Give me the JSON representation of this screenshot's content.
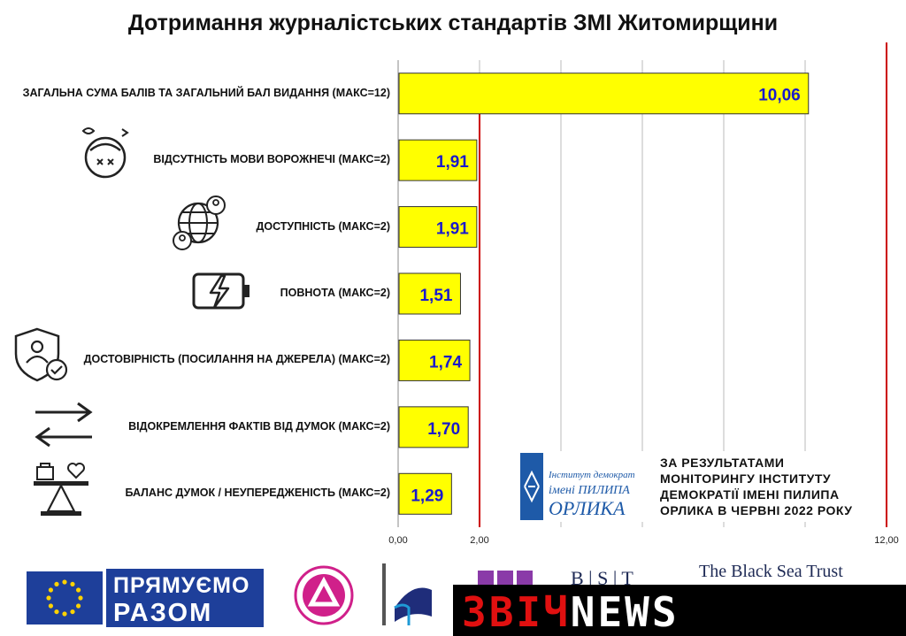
{
  "title": "Дотримання журналістських стандартів ЗМІ Житомирщини",
  "chart_data": {
    "type": "bar",
    "orientation": "horizontal",
    "title": "Дотримання журналістських стандартів ЗМІ Житомирщини",
    "categories": [
      "ЗАГАЛЬНА СУМА БАЛІВ ТА ЗАГАЛЬНИЙ БАЛ ВИДАННЯ (МАКС=12)",
      "ВІДСУТНІСТЬ МОВИ ВОРОЖНЕЧІ (МАКС=2)",
      "ДОСТУПНІСТЬ (МАКС=2)",
      "ПОВНОТА (МАКС=2)",
      "ДОСТОВІРНІСТЬ (ПОСИЛАННЯ НА ДЖЕРЕЛА) (МАКС=2)",
      "ВІДОКРЕМЛЕННЯ ФАКТІВ ВІД ДУМОК (МАКС=2)",
      "БАЛАНС ДУМОК / НЕУПЕРЕДЖЕНІСТЬ (МАКС=2)"
    ],
    "values": [
      10.06,
      1.91,
      1.91,
      1.51,
      1.74,
      1.7,
      1.29
    ],
    "value_labels": [
      "10,06",
      "1,91",
      "1,91",
      "1,51",
      "1,74",
      "1,70",
      "1,29"
    ],
    "xlim": [
      0,
      12
    ],
    "x_tick_labels": [
      "0,00",
      "2,00",
      "12,00"
    ],
    "x_ticks": [
      0,
      2,
      12
    ],
    "gridlines": [
      0,
      2,
      4,
      6,
      8,
      10,
      12
    ],
    "reference_lines": [
      2,
      12
    ],
    "bar_color": "#ffff00",
    "bar_border": "#333333",
    "label_color": "#1a1acc",
    "reference_line_color": "#cc0000",
    "grid": true
  },
  "source": {
    "text_lines": [
      "ЗА РЕЗУЛЬТАТАМИ",
      "МОНІТОРИНГУ ІНСТИТУТУ",
      "ДЕМОКРАТІЇ ІМЕНІ ПИЛИПА",
      "ОРЛИКА В ЧЕРВНІ 2022 РОКУ"
    ],
    "logo_lines": [
      "Інститут демократії",
      "імені ПИЛИПА",
      "ОРЛИКА"
    ]
  },
  "footer": {
    "pryamuemo_line1": "ПРЯМУЄМО",
    "pryamuemo_line2": "РАЗОМ",
    "bst_letters": "B | S | T",
    "bst_name": "The Black Sea Trust",
    "zvich_part1": "ЗВІЧ",
    "zvich_part2": "NEWS"
  },
  "icons": [
    "angry-face-icon",
    "globe-users-icon",
    "battery-charge-icon",
    "user-shield-check-icon",
    "swap-arrows-icon",
    "scales-heart-icon"
  ]
}
